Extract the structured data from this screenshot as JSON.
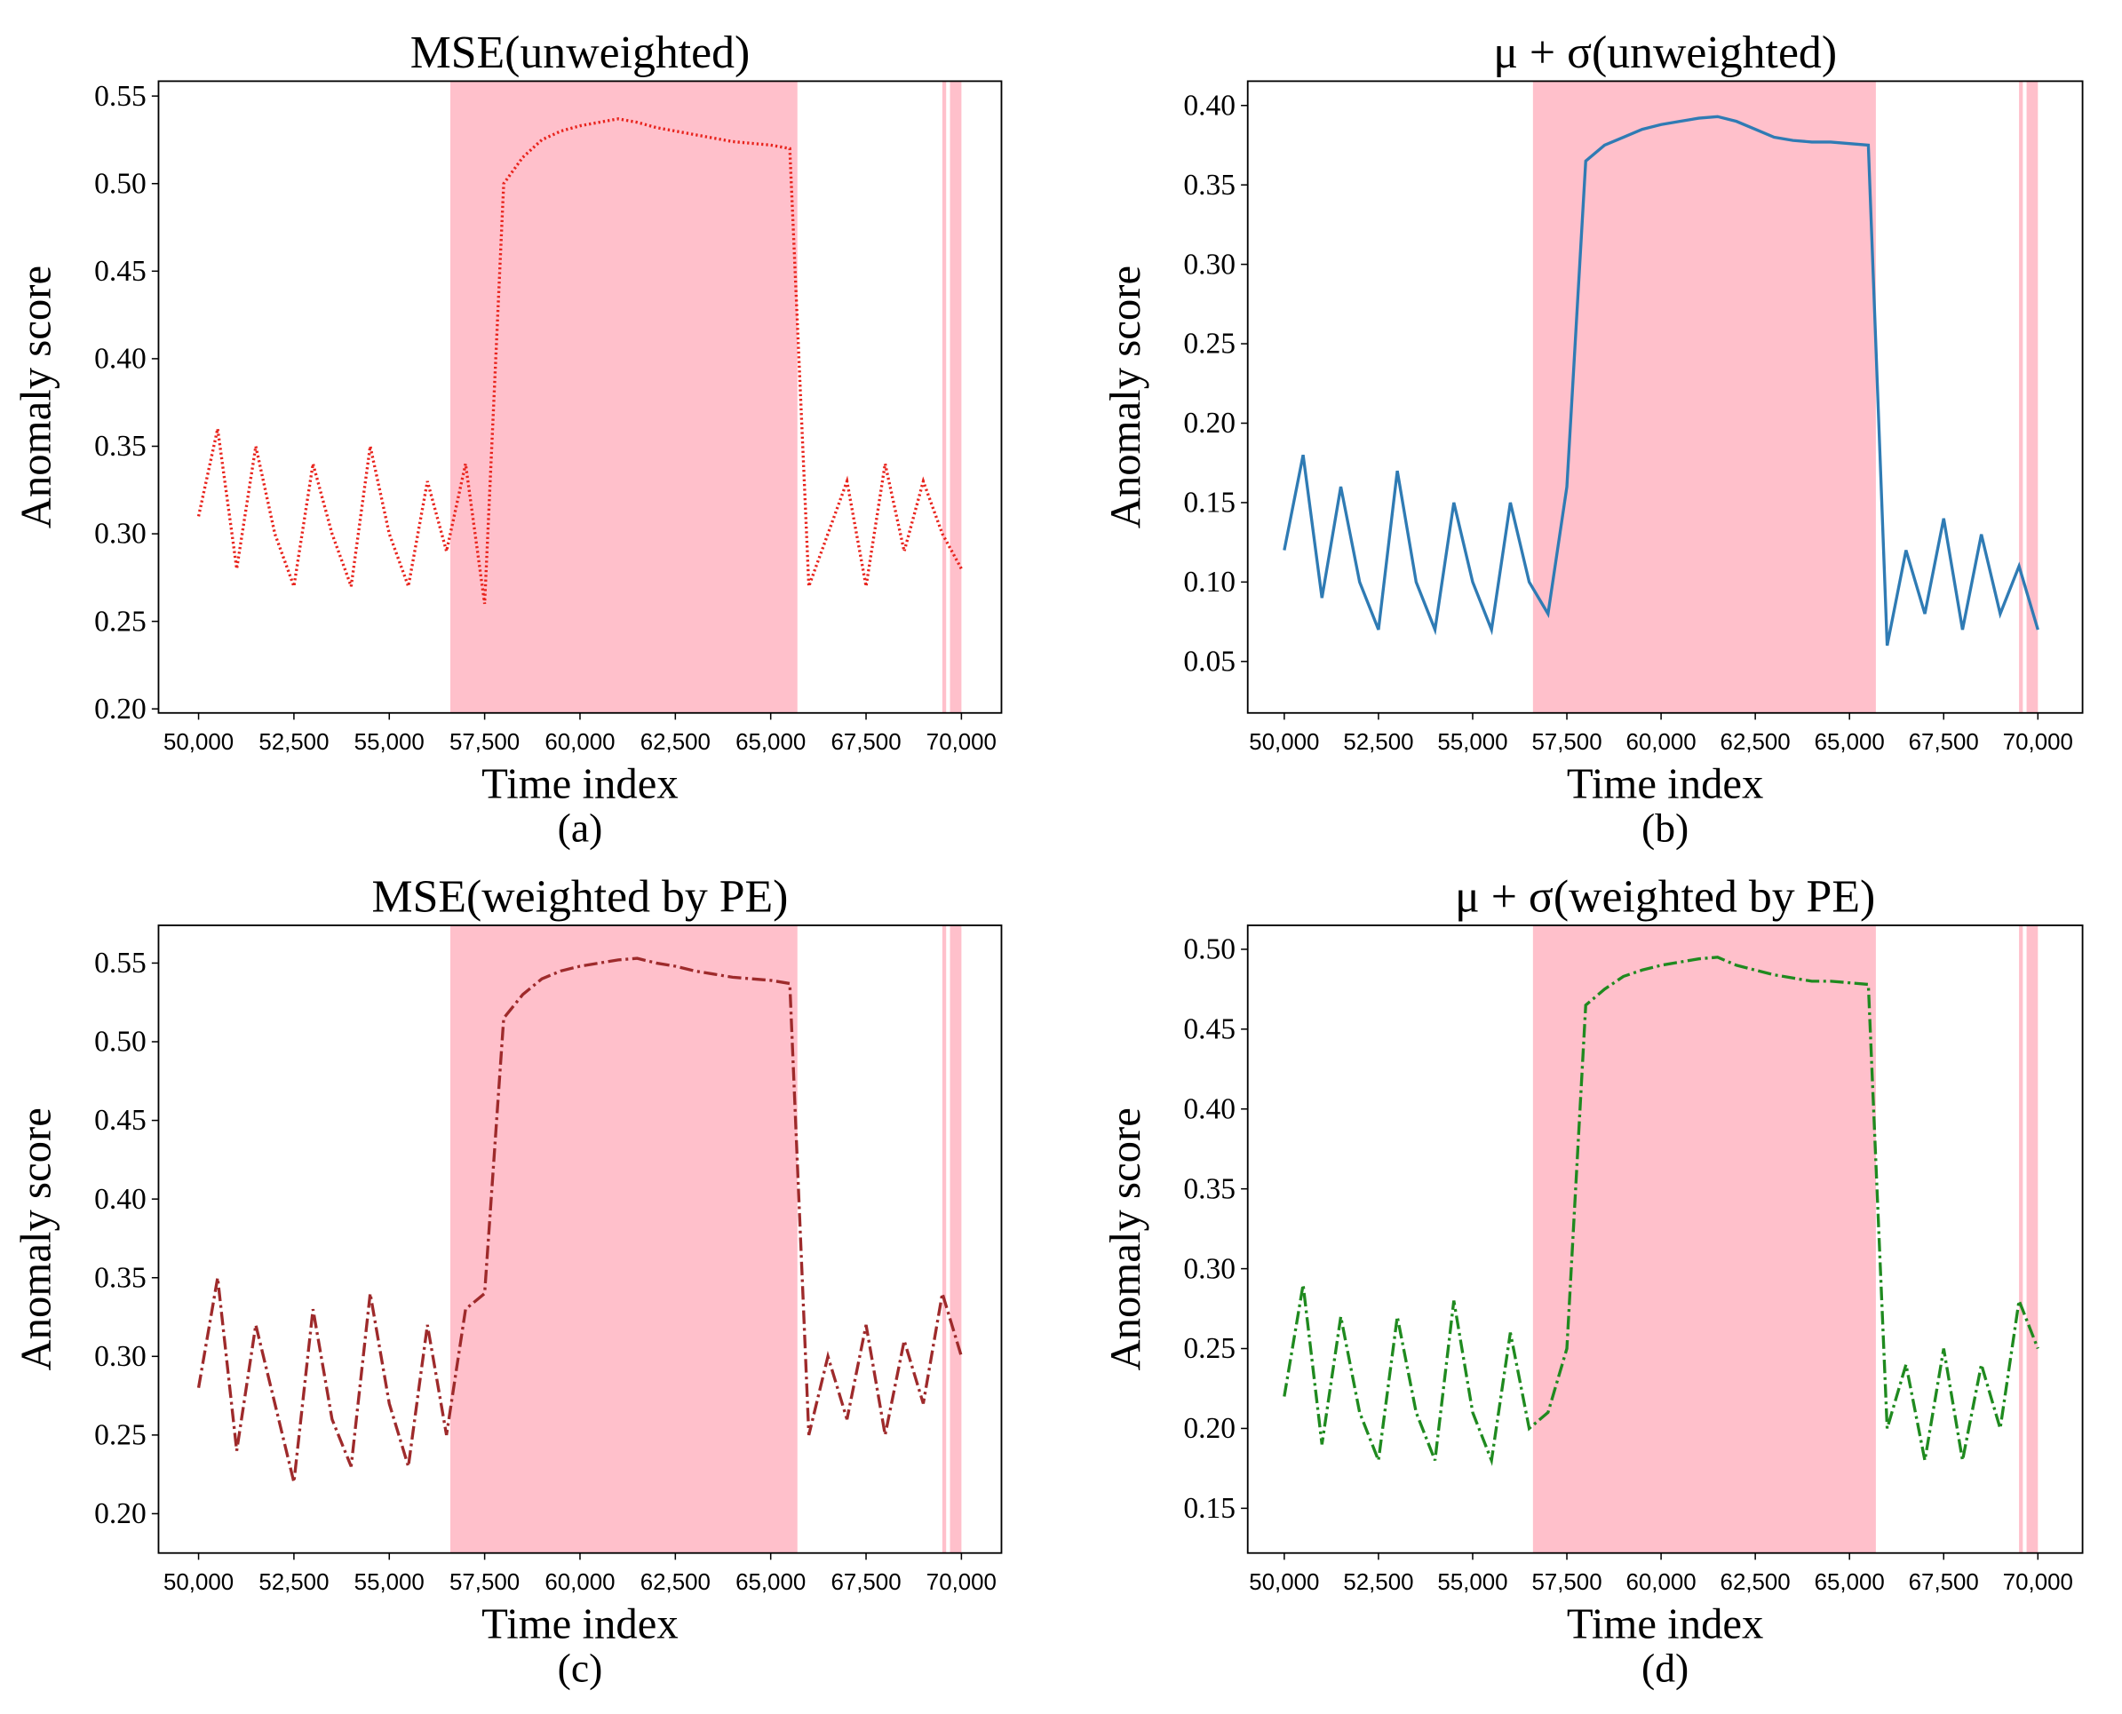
{
  "chart_data": [
    {
      "type": "line",
      "title": "MSE(unweighted)",
      "xlabel": "Time index",
      "ylabel": "Anomaly score",
      "caption": "(a)",
      "x": [
        50000,
        50500,
        51000,
        51500,
        52000,
        52500,
        53000,
        53500,
        54000,
        54500,
        55000,
        55500,
        56000,
        56500,
        57000,
        57500,
        58000,
        58500,
        59000,
        59500,
        60000,
        60500,
        61000,
        61500,
        62000,
        62500,
        63000,
        63500,
        64000,
        64500,
        65000,
        65500,
        66000,
        66500,
        67000,
        67500,
        68000,
        68500,
        69000,
        69500,
        70000
      ],
      "series": [
        {
          "color": "#e8231c",
          "linestyle": "dotted",
          "values": [
            0.31,
            0.36,
            0.28,
            0.35,
            0.3,
            0.27,
            0.34,
            0.3,
            0.27,
            0.35,
            0.3,
            0.27,
            0.33,
            0.29,
            0.34,
            0.26,
            0.5,
            0.515,
            0.525,
            0.53,
            0.533,
            0.535,
            0.537,
            0.535,
            0.532,
            0.53,
            0.528,
            0.526,
            0.524,
            0.523,
            0.522,
            0.52,
            0.27,
            0.3,
            0.33,
            0.27,
            0.34,
            0.29,
            0.33,
            0.3,
            0.28
          ]
        }
      ],
      "highlight_spans": [
        [
          56600,
          65700
        ],
        [
          69500,
          69600
        ],
        [
          69700,
          70000
        ]
      ],
      "highlight_color": "#ffc0cb",
      "xlim": [
        48950,
        71050
      ],
      "xticks": [
        {
          "value": 50000,
          "label": "50,000"
        },
        {
          "value": 52500,
          "label": "52,500"
        },
        {
          "value": 55000,
          "label": "55,000"
        },
        {
          "value": 57500,
          "label": "57,500"
        },
        {
          "value": 60000,
          "label": "60,000"
        },
        {
          "value": 62500,
          "label": "62,500"
        },
        {
          "value": 65000,
          "label": "65,000"
        },
        {
          "value": 67500,
          "label": "67,500"
        },
        {
          "value": 70000,
          "label": "70,000"
        }
      ],
      "ylim": [
        0.1977,
        0.5585
      ],
      "yticks": [
        {
          "value": 0.2,
          "label": "0.20"
        },
        0.25,
        {
          "value": 0.3,
          "label": "0.30"
        },
        0.35,
        {
          "value": 0.4,
          "label": "0.40"
        },
        0.45,
        {
          "value": 0.5,
          "label": "0.50"
        },
        0.55
      ]
    },
    {
      "type": "line",
      "title": "μ + σ(unweighted)",
      "xlabel": "Time index",
      "ylabel": "Anomaly score",
      "caption": "(b)",
      "x": [
        50000,
        50500,
        51000,
        51500,
        52000,
        52500,
        53000,
        53500,
        54000,
        54500,
        55000,
        55500,
        56000,
        56500,
        57000,
        57500,
        58000,
        58500,
        59000,
        59500,
        60000,
        60500,
        61000,
        61500,
        62000,
        62500,
        63000,
        63500,
        64000,
        64500,
        65000,
        65500,
        66000,
        66500,
        67000,
        67500,
        68000,
        68500,
        69000,
        69500,
        70000
      ],
      "series": [
        {
          "color": "#2f7bb4",
          "linestyle": "solid",
          "values": [
            0.12,
            0.18,
            0.09,
            0.16,
            0.1,
            0.07,
            0.17,
            0.1,
            0.07,
            0.15,
            0.1,
            0.07,
            0.15,
            0.1,
            0.08,
            0.16,
            0.365,
            0.375,
            0.38,
            0.385,
            0.388,
            0.39,
            0.392,
            0.393,
            0.39,
            0.385,
            0.38,
            0.378,
            0.377,
            0.377,
            0.376,
            0.375,
            0.06,
            0.12,
            0.08,
            0.14,
            0.07,
            0.13,
            0.08,
            0.11,
            0.07
          ]
        }
      ],
      "highlight_spans": [
        [
          56600,
          65700
        ],
        [
          69500,
          69600
        ],
        [
          69700,
          70000
        ]
      ],
      "highlight_color": "#ffc0cb",
      "xlim": [
        49030,
        71185
      ],
      "xticks": [
        {
          "value": 50000,
          "label": "50,000"
        },
        {
          "value": 52500,
          "label": "52,500"
        },
        {
          "value": 55000,
          "label": "55,000"
        },
        {
          "value": 57500,
          "label": "57,500"
        },
        {
          "value": 60000,
          "label": "60,000"
        },
        {
          "value": 62500,
          "label": "62,500"
        },
        {
          "value": 65000,
          "label": "65,000"
        },
        {
          "value": 67500,
          "label": "67,500"
        },
        {
          "value": 70000,
          "label": "70,000"
        }
      ],
      "ylim": [
        0.0176,
        0.4153
      ],
      "yticks": [
        0.05,
        {
          "value": 0.1,
          "label": "0.10"
        },
        0.15,
        {
          "value": 0.2,
          "label": "0.20"
        },
        0.25,
        {
          "value": 0.3,
          "label": "0.30"
        },
        0.35,
        {
          "value": 0.4,
          "label": "0.40"
        }
      ]
    },
    {
      "type": "line",
      "title": "MSE(weighted by PE)",
      "xlabel": "Time index",
      "ylabel": "Anomaly score",
      "caption": "(c)",
      "x": [
        50000,
        50500,
        51000,
        51500,
        52000,
        52500,
        53000,
        53500,
        54000,
        54500,
        55000,
        55500,
        56000,
        56500,
        57000,
        57500,
        58000,
        58500,
        59000,
        59500,
        60000,
        60500,
        61000,
        61500,
        62000,
        62500,
        63000,
        63500,
        64000,
        64500,
        65000,
        65500,
        66000,
        66500,
        67000,
        67500,
        68000,
        68500,
        69000,
        69500,
        70000
      ],
      "series": [
        {
          "color": "#9e2a2b",
          "linestyle": "dashdot",
          "values": [
            0.28,
            0.35,
            0.24,
            0.32,
            0.27,
            0.22,
            0.33,
            0.26,
            0.23,
            0.34,
            0.27,
            0.23,
            0.32,
            0.25,
            0.33,
            0.34,
            0.515,
            0.53,
            0.54,
            0.545,
            0.548,
            0.55,
            0.552,
            0.553,
            0.55,
            0.548,
            0.545,
            0.543,
            0.541,
            0.54,
            0.539,
            0.537,
            0.25,
            0.3,
            0.26,
            0.32,
            0.25,
            0.31,
            0.27,
            0.34,
            0.3
          ]
        }
      ],
      "highlight_spans": [
        [
          56600,
          65700
        ],
        [
          69500,
          69600
        ],
        [
          69700,
          70000
        ]
      ],
      "highlight_color": "#ffc0cb",
      "xlim": [
        48950,
        71050
      ],
      "xticks": [
        {
          "value": 50000,
          "label": "50,000"
        },
        {
          "value": 52500,
          "label": "52,500"
        },
        {
          "value": 55000,
          "label": "55,000"
        },
        {
          "value": 57500,
          "label": "57,500"
        },
        {
          "value": 60000,
          "label": "60,000"
        },
        {
          "value": 62500,
          "label": "62,500"
        },
        {
          "value": 65000,
          "label": "65,000"
        },
        {
          "value": 67500,
          "label": "67,500"
        },
        {
          "value": 70000,
          "label": "70,000"
        }
      ],
      "ylim": [
        0.175,
        0.574
      ],
      "yticks": [
        {
          "value": 0.2,
          "label": "0.20"
        },
        0.25,
        {
          "value": 0.3,
          "label": "0.30"
        },
        0.35,
        {
          "value": 0.4,
          "label": "0.40"
        },
        0.45,
        {
          "value": 0.5,
          "label": "0.50"
        },
        0.55
      ]
    },
    {
      "type": "line",
      "title": "μ + σ(weighted by PE)",
      "xlabel": "Time index",
      "ylabel": "Anomaly score",
      "caption": "(d)",
      "x": [
        50000,
        50500,
        51000,
        51500,
        52000,
        52500,
        53000,
        53500,
        54000,
        54500,
        55000,
        55500,
        56000,
        56500,
        57000,
        57500,
        58000,
        58500,
        59000,
        59500,
        60000,
        60500,
        61000,
        61500,
        62000,
        62500,
        63000,
        63500,
        64000,
        64500,
        65000,
        65500,
        66000,
        66500,
        67000,
        67500,
        68000,
        68500,
        69000,
        69500,
        70000
      ],
      "series": [
        {
          "color": "#1f8a1f",
          "linestyle": "dashdot",
          "values": [
            0.22,
            0.29,
            0.19,
            0.27,
            0.21,
            0.18,
            0.27,
            0.21,
            0.18,
            0.28,
            0.21,
            0.18,
            0.26,
            0.2,
            0.21,
            0.25,
            0.465,
            0.475,
            0.483,
            0.487,
            0.49,
            0.492,
            0.494,
            0.495,
            0.49,
            0.487,
            0.484,
            0.482,
            0.48,
            0.48,
            0.479,
            0.478,
            0.2,
            0.24,
            0.18,
            0.25,
            0.18,
            0.24,
            0.2,
            0.28,
            0.25
          ]
        }
      ],
      "highlight_spans": [
        [
          56600,
          65700
        ],
        [
          69500,
          69600
        ],
        [
          69700,
          70000
        ]
      ],
      "highlight_color": "#ffc0cb",
      "xlim": [
        49030,
        71185
      ],
      "xticks": [
        {
          "value": 50000,
          "label": "50,000"
        },
        {
          "value": 52500,
          "label": "52,500"
        },
        {
          "value": 55000,
          "label": "55,000"
        },
        {
          "value": 57500,
          "label": "57,500"
        },
        {
          "value": 60000,
          "label": "60,000"
        },
        {
          "value": 62500,
          "label": "62,500"
        },
        {
          "value": 65000,
          "label": "65,000"
        },
        {
          "value": 67500,
          "label": "67,500"
        },
        {
          "value": 70000,
          "label": "70,000"
        }
      ],
      "ylim": [
        0.122,
        0.515
      ],
      "yticks": [
        0.15,
        {
          "value": 0.2,
          "label": "0.20"
        },
        0.25,
        {
          "value": 0.3,
          "label": "0.30"
        },
        0.35,
        {
          "value": 0.4,
          "label": "0.40"
        },
        0.45,
        {
          "value": 0.5,
          "label": "0.50"
        }
      ]
    }
  ]
}
